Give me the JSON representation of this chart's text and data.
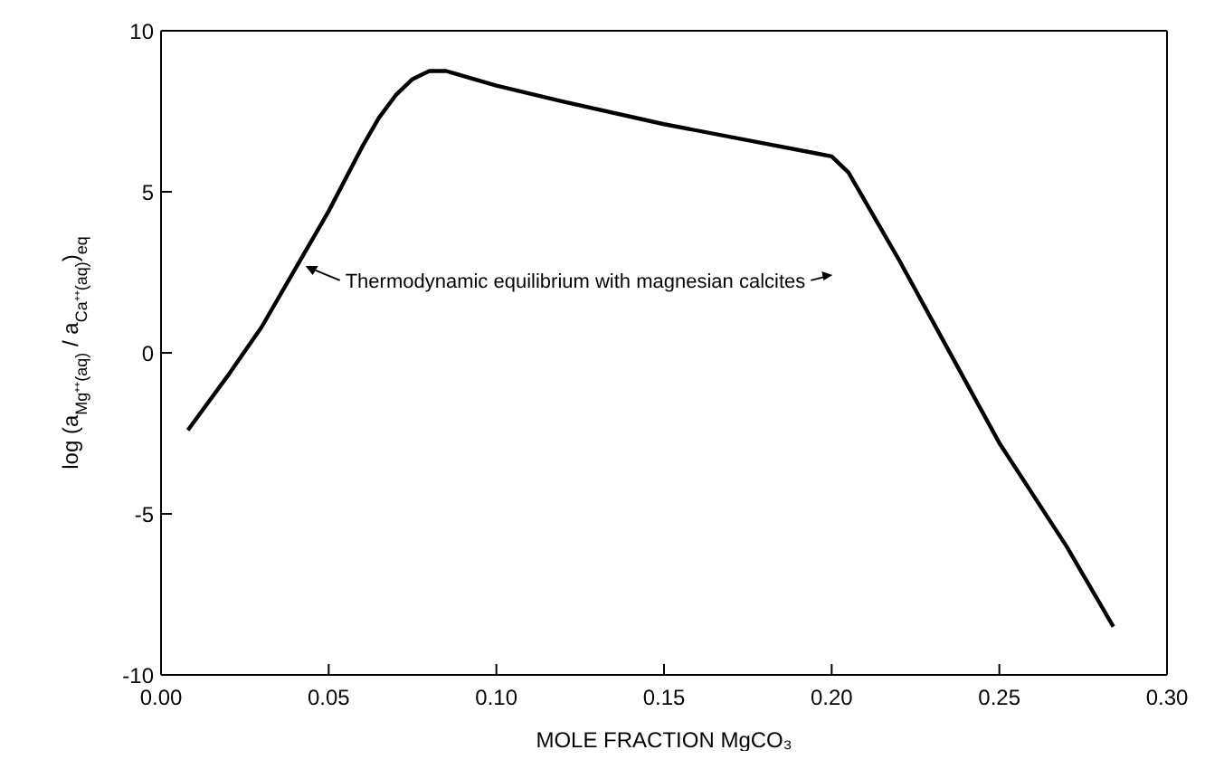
{
  "chart_data": {
    "type": "line",
    "xlabel": "MOLE FRACTION MgCO₃",
    "ylabel": "log (a$_{Mg⁺⁺(aq)}$ / a$_{Ca⁺⁺(aq)}$)$_{eq}$",
    "x": [
      0.008,
      0.02,
      0.03,
      0.04,
      0.05,
      0.06,
      0.065,
      0.07,
      0.075,
      0.08,
      0.085,
      0.09,
      0.1,
      0.12,
      0.15,
      0.18,
      0.195,
      0.2,
      0.205,
      0.21,
      0.22,
      0.23,
      0.25,
      0.27,
      0.284
    ],
    "series": [
      {
        "color": "#000000",
        "values": [
          -2.4,
          -0.7,
          0.8,
          2.6,
          4.4,
          6.4,
          7.3,
          8.0,
          8.5,
          8.75,
          8.75,
          8.6,
          8.3,
          7.8,
          7.1,
          6.5,
          6.2,
          6.1,
          5.6,
          4.7,
          2.9,
          1.0,
          -2.8,
          -6.0,
          -8.5
        ]
      }
    ],
    "xlim": [
      0,
      0.3
    ],
    "xticks": [
      {
        "value": 0,
        "label": "0.00"
      },
      {
        "value": 0.05,
        "label": "0.05"
      },
      {
        "value": 0.1,
        "label": "0.10"
      },
      {
        "value": 0.15,
        "label": "0.15"
      },
      {
        "value": 0.2,
        "label": "0.20"
      },
      {
        "value": 0.25,
        "label": "0.25"
      },
      {
        "value": 0.3,
        "label": "0.30"
      }
    ],
    "ylim": [
      -10,
      10
    ],
    "yticks": [
      -10,
      -5,
      0,
      5,
      10
    ],
    "annotations": [
      {
        "text": "Thermodynamic equilibrium with magnesian calcites",
        "x": 0.042,
        "y": 2.7
      }
    ],
    "grid": false,
    "legend": false,
    "marker": "none",
    "line_style": "solid"
  }
}
